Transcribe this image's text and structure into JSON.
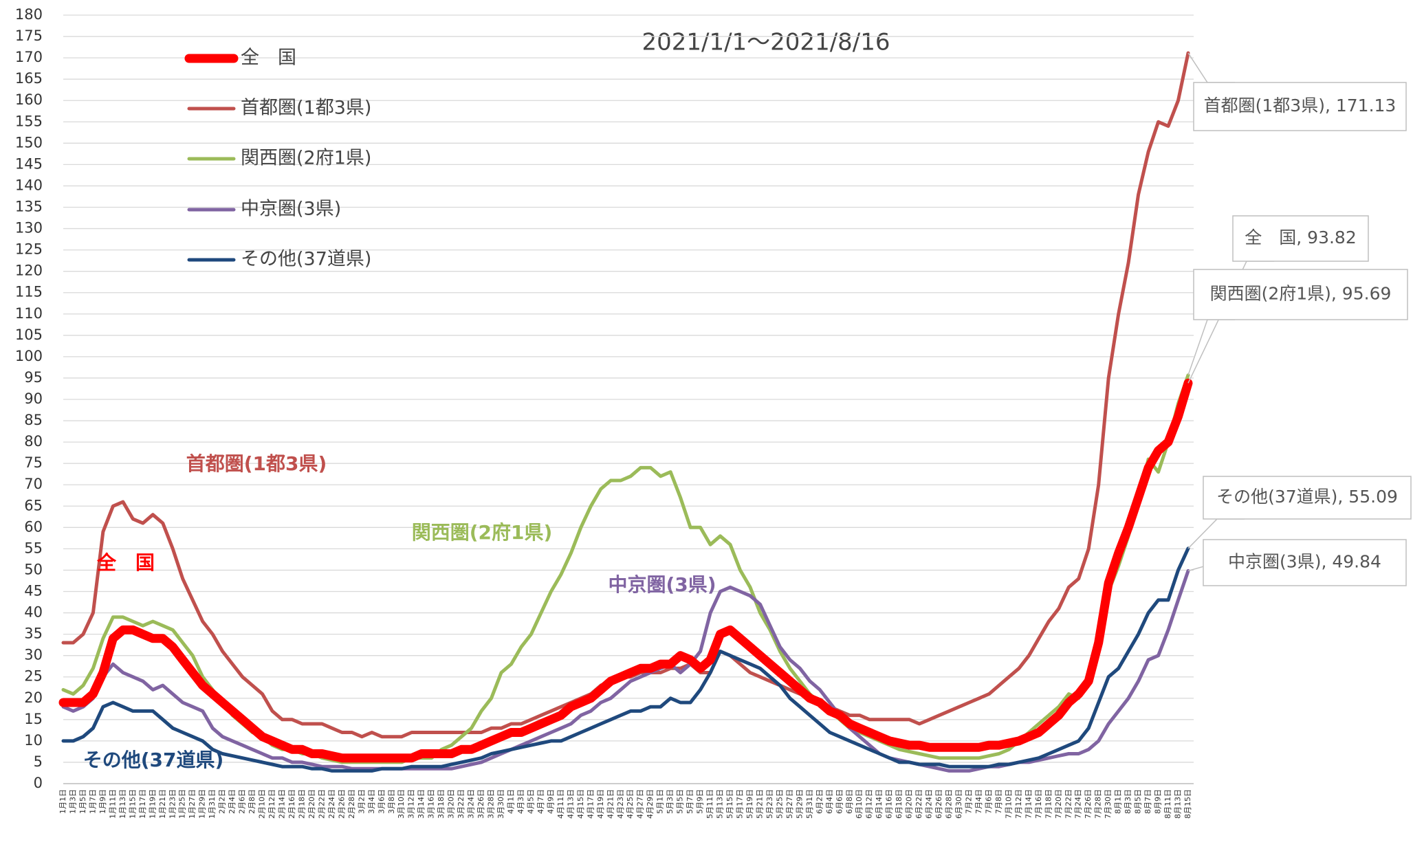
{
  "chart_data": {
    "type": "line",
    "subtitle": "2021/1/1～2021/8/16",
    "categories": [
      "1月1日",
      "1月3日",
      "1月5日",
      "1月7日",
      "1月9日",
      "1月11日",
      "1月13日",
      "1月15日",
      "1月17日",
      "1月19日",
      "1月21日",
      "1月23日",
      "1月25日",
      "1月27日",
      "1月29日",
      "1月31日",
      "2月2日",
      "2月4日",
      "2月6日",
      "2月8日",
      "2月10日",
      "2月12日",
      "2月14日",
      "2月16日",
      "2月18日",
      "2月20日",
      "2月22日",
      "2月24日",
      "2月26日",
      "2月28日",
      "3月2日",
      "3月4日",
      "3月6日",
      "3月8日",
      "3月10日",
      "3月12日",
      "3月14日",
      "3月16日",
      "3月18日",
      "3月20日",
      "3月22日",
      "3月24日",
      "3月26日",
      "3月28日",
      "3月30日",
      "4月1日",
      "4月3日",
      "4月5日",
      "4月7日",
      "4月9日",
      "4月11日",
      "4月13日",
      "4月15日",
      "4月17日",
      "4月19日",
      "4月21日",
      "4月23日",
      "4月25日",
      "4月27日",
      "4月29日",
      "5月1日",
      "5月3日",
      "5月5日",
      "5月7日",
      "5月9日",
      "5月11日",
      "5月13日",
      "5月15日",
      "5月17日",
      "5月19日",
      "5月21日",
      "5月23日",
      "5月25日",
      "5月27日",
      "5月29日",
      "5月31日",
      "6月2日",
      "6月4日",
      "6月6日",
      "6月8日",
      "6月10日",
      "6月12日",
      "6月14日",
      "6月16日",
      "6月18日",
      "6月20日",
      "6月22日",
      "6月24日",
      "6月26日",
      "6月28日",
      "6月30日",
      "7月2日",
      "7月4日",
      "7月6日",
      "7月8日",
      "7月10日",
      "7月12日",
      "7月14日",
      "7月16日",
      "7月18日",
      "7月20日",
      "7月22日",
      "7月24日",
      "7月26日",
      "7月28日",
      "7月30日",
      "8月1日",
      "8月3日",
      "8月5日",
      "8月7日",
      "8月9日",
      "8月11日",
      "8月13日",
      "8月15日"
    ],
    "series": [
      {
        "name": "全　国",
        "color": "#ff0000",
        "values": [
          19,
          19,
          19,
          21,
          26,
          34,
          36,
          36,
          35,
          34,
          34,
          32,
          29,
          26,
          23,
          21,
          19,
          17,
          15,
          13,
          11,
          10,
          9,
          8,
          8,
          7,
          7,
          6.5,
          6,
          6,
          6,
          6,
          6,
          6,
          6,
          6,
          7,
          7,
          7,
          7,
          8,
          8,
          9,
          10,
          11,
          12,
          12,
          13,
          14,
          15,
          16,
          18,
          19,
          20,
          22,
          24,
          25,
          26,
          27,
          27,
          28,
          28,
          30,
          29,
          27,
          29,
          35,
          36,
          34,
          32,
          30,
          28,
          26,
          24,
          22,
          20,
          19,
          17,
          16,
          14,
          13,
          12,
          11,
          10,
          9.5,
          9,
          9,
          8.5,
          8.5,
          8.5,
          8.5,
          8.5,
          8.5,
          9,
          9,
          9.5,
          10,
          11,
          12,
          14,
          16,
          19,
          21,
          24,
          33,
          47,
          54,
          60,
          67,
          74,
          78,
          80,
          86,
          93.82
        ]
      },
      {
        "name": "首都圏(1都3県)",
        "color": "#c0504d",
        "values": [
          33,
          33,
          35,
          40,
          59,
          65,
          66,
          62,
          61,
          63,
          61,
          55,
          48,
          43,
          38,
          35,
          31,
          28,
          25,
          23,
          21,
          17,
          15,
          15,
          14,
          14,
          14,
          13,
          12,
          12,
          11,
          12,
          11,
          11,
          11,
          12,
          12,
          12,
          12,
          12,
          12,
          12,
          12,
          13,
          13,
          14,
          14,
          15,
          16,
          17,
          18,
          19,
          20,
          21,
          23,
          24,
          25,
          25,
          26,
          26,
          26,
          27,
          27,
          28,
          26,
          26,
          31,
          30,
          28,
          26,
          25,
          24,
          23,
          22,
          21,
          20,
          19,
          18,
          17,
          16,
          16,
          15,
          15,
          15,
          15,
          15,
          14,
          15,
          16,
          17,
          18,
          19,
          20,
          21,
          23,
          25,
          27,
          30,
          34,
          38,
          41,
          46,
          48,
          55,
          70,
          95,
          110,
          122,
          138,
          148,
          155,
          154,
          160,
          171.13
        ]
      },
      {
        "name": "関西圏(2府1県)",
        "color": "#9bbb59",
        "values": [
          22,
          21,
          23,
          27,
          34,
          39,
          39,
          38,
          37,
          38,
          37,
          36,
          33,
          30,
          25,
          22,
          19,
          16,
          14,
          12,
          11,
          9,
          8,
          8,
          7,
          7,
          6,
          5.5,
          5,
          5,
          5,
          5,
          5,
          5,
          5,
          6,
          6,
          6,
          8,
          9,
          11,
          13,
          17,
          20,
          26,
          28,
          32,
          35,
          40,
          45,
          49,
          54,
          60,
          65,
          69,
          71,
          71,
          72,
          74,
          74,
          72,
          73,
          67,
          60,
          60,
          56,
          58,
          56,
          50,
          46,
          40,
          36,
          31,
          27,
          24,
          21,
          19,
          17,
          15,
          13,
          12,
          11,
          10,
          9,
          8,
          7.5,
          7,
          6.5,
          6,
          6,
          6,
          6,
          6,
          6.5,
          7,
          8,
          10,
          12,
          14,
          16,
          18,
          21,
          20,
          24,
          32,
          45,
          51,
          58,
          66,
          76,
          73,
          80,
          89,
          95.69
        ]
      },
      {
        "name": "中京圏(3県)",
        "color": "#8064a2",
        "values": [
          18,
          17,
          18,
          20,
          25,
          28,
          26,
          25,
          24,
          22,
          23,
          21,
          19,
          18,
          17,
          13,
          11,
          10,
          9,
          8,
          7,
          6,
          6,
          5,
          5,
          4.5,
          4,
          4,
          4,
          3.5,
          3.5,
          3.5,
          3.5,
          3.5,
          3.5,
          3.5,
          3.5,
          3.5,
          3.5,
          3.5,
          4,
          4.5,
          5,
          6,
          7,
          8,
          9,
          10,
          11,
          12,
          13,
          14,
          16,
          17,
          19,
          20,
          22,
          24,
          25,
          26,
          27,
          28,
          26,
          28,
          31,
          40,
          45,
          46,
          45,
          44,
          42,
          37,
          32,
          29,
          27,
          24,
          22,
          19,
          16,
          13,
          11,
          9,
          7,
          6,
          5.5,
          5,
          4.5,
          4,
          3.5,
          3,
          3,
          3,
          3.5,
          4,
          4,
          4.5,
          5,
          5,
          5.5,
          6,
          6.5,
          7,
          7,
          8,
          10,
          14,
          17,
          20,
          24,
          29,
          30,
          36,
          43,
          49.84
        ]
      },
      {
        "name": "その他(37道県)",
        "color": "#1f497d",
        "values": [
          10,
          10,
          11,
          13,
          18,
          19,
          18,
          17,
          17,
          17,
          15,
          13,
          12,
          11,
          10,
          8,
          7,
          6.5,
          6,
          5.5,
          5,
          4.5,
          4,
          4,
          4,
          3.5,
          3.5,
          3,
          3,
          3,
          3,
          3,
          3.5,
          3.5,
          3.5,
          4,
          4,
          4,
          4,
          4.5,
          5,
          5.5,
          6,
          7,
          7.5,
          8,
          8.5,
          9,
          9.5,
          10,
          10,
          11,
          12,
          13,
          14,
          15,
          16,
          17,
          17,
          18,
          18,
          20,
          19,
          19,
          22,
          26,
          31,
          30,
          29,
          28,
          27,
          25,
          23,
          20,
          18,
          16,
          14,
          12,
          11,
          10,
          9,
          8,
          7,
          6,
          5,
          5,
          4.5,
          4.5,
          4.5,
          4,
          4,
          4,
          4,
          4,
          4.5,
          4.5,
          5,
          5.5,
          6,
          7,
          8,
          9,
          10,
          13,
          19,
          25,
          27,
          31,
          35,
          40,
          43,
          43,
          50,
          55.09
        ]
      }
    ],
    "labels": [
      "首都圏(1都3県)",
      "全　国",
      "関西圏(2府1県)",
      "中京圏(3県)",
      "その他(37道県)"
    ],
    "callouts": [
      "首都圏(1都3県), 171.13",
      "全　国, 93.82",
      "関西圏(2府1県), 95.69",
      "その他(37道県), 55.09",
      "中京圏(3県), 49.84"
    ],
    "ylim": [
      0,
      180
    ],
    "yticks": [
      0,
      5,
      10,
      15,
      20,
      25,
      30,
      35,
      40,
      45,
      50,
      55,
      60,
      65,
      70,
      75,
      80,
      85,
      90,
      95,
      100,
      105,
      110,
      115,
      120,
      125,
      130,
      135,
      140,
      145,
      150,
      155,
      160,
      165,
      170,
      175,
      180
    ],
    "grid": true
  }
}
